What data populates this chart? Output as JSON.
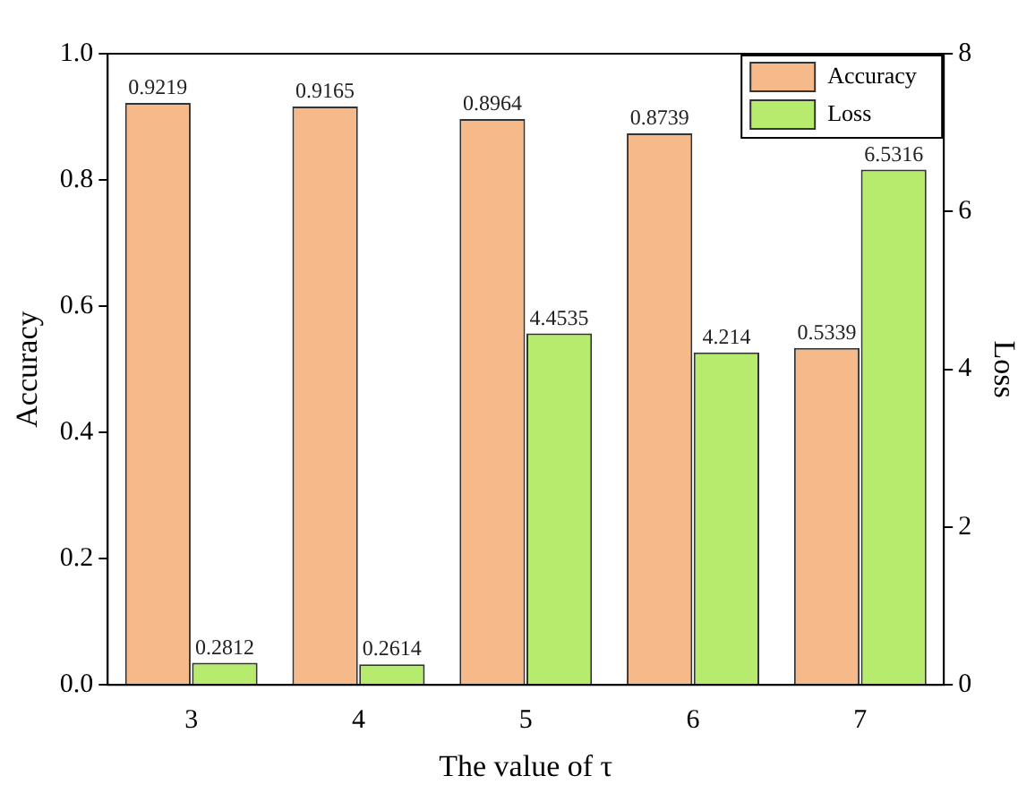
{
  "chart_data": {
    "type": "bar",
    "xlabel": "The value of τ",
    "ylabel": "Accuracy",
    "y2label": "Loss",
    "categories": [
      "3",
      "4",
      "5",
      "6",
      "7"
    ],
    "series": [
      {
        "name": "Accuracy",
        "color": "#f6b98a",
        "values": [
          0.9219,
          0.9165,
          0.8964,
          0.8739,
          0.5339
        ]
      },
      {
        "name": "Loss",
        "color": "#b7eb6e",
        "axis": "y2",
        "values": [
          0.2812,
          0.2614,
          4.4535,
          4.214,
          6.5316
        ]
      }
    ],
    "ylim": [
      0,
      1
    ],
    "yticks": [
      {
        "value": 0,
        "label": "0.0"
      },
      0.2,
      0.4,
      0.6,
      0.8,
      {
        "value": 1,
        "label": "1.0"
      }
    ],
    "y2lim": [
      0,
      8
    ],
    "y2ticks": [
      0,
      2,
      4,
      6,
      8
    ],
    "legend": "top right",
    "grid": false,
    "data_labels": true
  }
}
